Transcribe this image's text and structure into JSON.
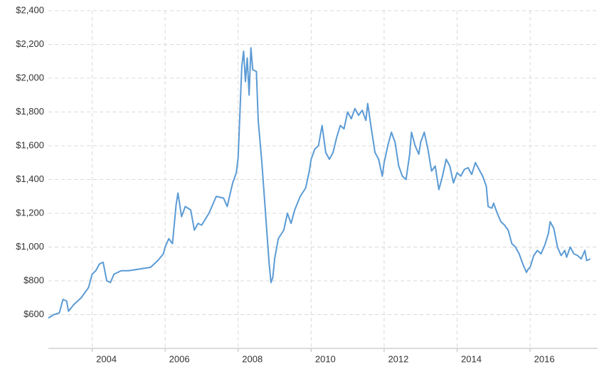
{
  "chart_data": {
    "type": "line",
    "color": "#5b9bd5",
    "grid": true,
    "xlim": [
      2002.8,
      2017.85
    ],
    "xticks": [
      2004,
      2006,
      2008,
      2010,
      2012,
      2014,
      2016
    ],
    "ylim": [
      400,
      2400
    ],
    "yticks": [
      {
        "value": 600,
        "label": "$600"
      },
      {
        "value": 800,
        "label": "$800"
      },
      {
        "value": 1000,
        "label": "$1,000"
      },
      {
        "value": 1200,
        "label": "$1,200"
      },
      {
        "value": 1400,
        "label": "$1,400"
      },
      {
        "value": 1600,
        "label": "$1,600"
      },
      {
        "value": 1800,
        "label": "$1,800"
      },
      {
        "value": 2000,
        "label": "$2,000"
      },
      {
        "value": 2200,
        "label": "$2,200"
      },
      {
        "value": 2400,
        "label": "$2,400"
      }
    ],
    "x": [
      2002.8,
      2002.95,
      2003.1,
      2003.2,
      2003.3,
      2003.35,
      2003.5,
      2003.7,
      2003.9,
      2004.0,
      2004.1,
      2004.2,
      2004.3,
      2004.4,
      2004.5,
      2004.6,
      2004.8,
      2005.0,
      2005.3,
      2005.6,
      2005.8,
      2005.95,
      2006.0,
      2006.1,
      2006.2,
      2006.3,
      2006.35,
      2006.45,
      2006.55,
      2006.7,
      2006.8,
      2006.9,
      2007.0,
      2007.2,
      2007.4,
      2007.6,
      2007.7,
      2007.85,
      2007.95,
      2008.0,
      2008.1,
      2008.15,
      2008.2,
      2008.25,
      2008.3,
      2008.35,
      2008.4,
      2008.5,
      2008.55,
      2008.65,
      2008.75,
      2008.85,
      2008.9,
      2008.95,
      2009.0,
      2009.1,
      2009.25,
      2009.35,
      2009.45,
      2009.55,
      2009.7,
      2009.85,
      2009.95,
      2010.0,
      2010.1,
      2010.2,
      2010.3,
      2010.4,
      2010.5,
      2010.6,
      2010.7,
      2010.8,
      2010.9,
      2011.0,
      2011.1,
      2011.2,
      2011.3,
      2011.4,
      2011.5,
      2011.55,
      2011.65,
      2011.75,
      2011.85,
      2011.95,
      2012.0,
      2012.1,
      2012.2,
      2012.3,
      2012.4,
      2012.5,
      2012.6,
      2012.7,
      2012.75,
      2012.85,
      2012.95,
      2013.0,
      2013.1,
      2013.2,
      2013.3,
      2013.4,
      2013.5,
      2013.6,
      2013.7,
      2013.8,
      2013.9,
      2014.0,
      2014.1,
      2014.2,
      2014.3,
      2014.4,
      2014.5,
      2014.6,
      2014.7,
      2014.8,
      2014.85,
      2014.95,
      2015.0,
      2015.1,
      2015.2,
      2015.3,
      2015.4,
      2015.5,
      2015.6,
      2015.7,
      2015.8,
      2015.9,
      2015.95,
      2016.0,
      2016.1,
      2016.2,
      2016.3,
      2016.4,
      2016.5,
      2016.55,
      2016.65,
      2016.75,
      2016.85,
      2016.95,
      2017.0,
      2017.1,
      2017.2,
      2017.3,
      2017.4,
      2017.5,
      2017.55,
      2017.65
    ],
    "values": [
      580,
      600,
      610,
      690,
      680,
      620,
      660,
      700,
      760,
      840,
      860,
      900,
      910,
      800,
      790,
      840,
      860,
      860,
      870,
      880,
      920,
      960,
      1000,
      1050,
      1020,
      1250,
      1320,
      1180,
      1240,
      1220,
      1100,
      1140,
      1130,
      1200,
      1300,
      1290,
      1240,
      1380,
      1440,
      1530,
      2070,
      2160,
      1980,
      2120,
      1900,
      2180,
      2050,
      2040,
      1750,
      1500,
      1200,
      900,
      790,
      820,
      930,
      1050,
      1100,
      1200,
      1140,
      1220,
      1300,
      1350,
      1450,
      1520,
      1580,
      1600,
      1720,
      1560,
      1520,
      1560,
      1650,
      1720,
      1700,
      1800,
      1760,
      1820,
      1780,
      1810,
      1750,
      1850,
      1700,
      1560,
      1520,
      1420,
      1500,
      1600,
      1680,
      1620,
      1480,
      1420,
      1400,
      1550,
      1680,
      1600,
      1550,
      1620,
      1680,
      1580,
      1450,
      1480,
      1340,
      1420,
      1520,
      1480,
      1380,
      1440,
      1420,
      1460,
      1470,
      1430,
      1500,
      1460,
      1420,
      1360,
      1240,
      1230,
      1260,
      1200,
      1150,
      1130,
      1100,
      1020,
      1000,
      960,
      900,
      850,
      870,
      880,
      950,
      980,
      960,
      1010,
      1080,
      1150,
      1110,
      1000,
      950,
      980,
      940,
      1000,
      960,
      950,
      930,
      980,
      920,
      930
    ]
  }
}
